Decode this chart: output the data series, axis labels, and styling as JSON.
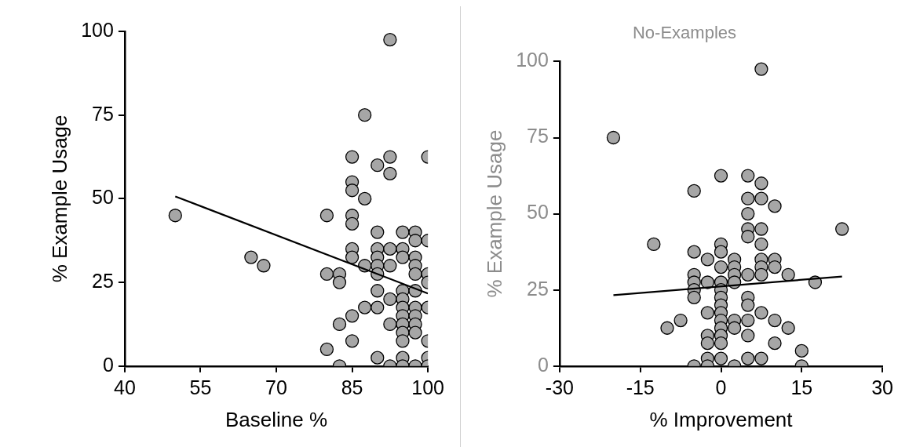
{
  "chart_data": [
    {
      "type": "scatter",
      "xlabel": "Baseline %",
      "ylabel": "% Example Usage",
      "xlim": [
        40,
        100
      ],
      "ylim": [
        0,
        100
      ],
      "xticks": [
        40,
        55,
        70,
        85,
        100
      ],
      "yticks": [
        0,
        25,
        50,
        75,
        100
      ],
      "grid": false,
      "legend": false,
      "series": [
        {
          "type": "scatter",
          "marker": "circle",
          "color": "#a6a6a6",
          "x": [
            50,
            65,
            67.5,
            80,
            80,
            80,
            82.5,
            82.5,
            82.5,
            82.5,
            85,
            85,
            85,
            85,
            85,
            85,
            85,
            85,
            85,
            87.5,
            87.5,
            87.5,
            87.5,
            90,
            90,
            90,
            90,
            90,
            90,
            90,
            90,
            90,
            92.5,
            92.5,
            92.5,
            92.5,
            92.5,
            92.5,
            92.5,
            92.5,
            95,
            95,
            95,
            95,
            95,
            95,
            95,
            95,
            95,
            95,
            95,
            95,
            97.5,
            97.5,
            97.5,
            97.5,
            97.5,
            97.5,
            97.5,
            97.5,
            97.5,
            97.5,
            97.5,
            100,
            100,
            100,
            100,
            100,
            100,
            100,
            100
          ],
          "values": [
            45,
            32.5,
            30,
            45,
            27.5,
            5,
            27.5,
            25,
            12.5,
            0,
            62.5,
            55,
            52.5,
            45,
            42.5,
            35,
            32.5,
            15,
            7.5,
            75,
            50,
            30,
            17.5,
            60,
            40,
            35,
            32.5,
            30,
            27.5,
            22.5,
            17.5,
            2.5,
            97.5,
            62.5,
            57.5,
            35,
            30,
            20,
            12.5,
            0,
            40,
            35,
            32.5,
            22.5,
            20,
            17.5,
            15,
            12.5,
            10,
            7.5,
            2.5,
            0,
            40,
            37.5,
            32.5,
            30,
            27.5,
            22.5,
            17.5,
            15,
            12.5,
            10,
            0,
            62.5,
            37.5,
            27.5,
            25,
            17.5,
            7.5,
            2.5,
            0
          ]
        },
        {
          "type": "line",
          "color": "#000000",
          "x": [
            50,
            100
          ],
          "values": [
            50.7,
            21.7
          ]
        }
      ]
    },
    {
      "type": "scatter",
      "title": "No-Examples",
      "xlabel": "% Improvement",
      "ylabel": "% Example Usage",
      "xlim": [
        -30,
        30
      ],
      "ylim": [
        0,
        100
      ],
      "xticks": [
        -30,
        -15,
        0,
        15,
        30
      ],
      "yticks": [
        0,
        25,
        50,
        75,
        100
      ],
      "grid": false,
      "legend": false,
      "series": [
        {
          "type": "scatter",
          "marker": "circle",
          "color": "#a6a6a6",
          "x": [
            -20,
            -12.5,
            -10,
            -7.5,
            -5,
            -5,
            -5,
            -5,
            -5,
            -5,
            -5,
            -2.5,
            -2.5,
            -2.5,
            -2.5,
            -2.5,
            -2.5,
            -2.5,
            0,
            0,
            0,
            0,
            0,
            0,
            0,
            0,
            0,
            0,
            0,
            0,
            0,
            0,
            2.5,
            2.5,
            2.5,
            2.5,
            2.5,
            2.5,
            2.5,
            5,
            5,
            5,
            5,
            5,
            5,
            5,
            5,
            5,
            5,
            5,
            7.5,
            7.5,
            7.5,
            7.5,
            7.5,
            7.5,
            7.5,
            7.5,
            7.5,
            7.5,
            10,
            10,
            10,
            10,
            10,
            12.5,
            12.5,
            15,
            15,
            17.5,
            22.5
          ],
          "values": [
            75,
            40,
            12.5,
            15,
            57.5,
            37.5,
            30,
            27.5,
            25,
            22.5,
            0,
            35,
            27.5,
            17.5,
            10,
            7.5,
            2.5,
            0,
            62.5,
            40,
            37.5,
            32.5,
            27.5,
            25,
            22.5,
            20,
            17.5,
            15,
            12.5,
            10,
            7.5,
            2.5,
            35,
            32.5,
            30,
            27.5,
            15,
            12.5,
            0,
            62.5,
            55,
            50,
            45,
            42.5,
            30,
            22.5,
            20,
            15,
            10,
            2.5,
            97.5,
            60,
            55,
            45,
            40,
            35,
            32.5,
            30,
            17.5,
            2.5,
            52.5,
            35,
            32.5,
            15,
            7.5,
            30,
            12.5,
            5,
            0,
            27.5,
            45
          ]
        },
        {
          "type": "line",
          "color": "#000000",
          "x": [
            -20,
            22.5
          ],
          "values": [
            23.3,
            29.4
          ]
        }
      ]
    }
  ]
}
